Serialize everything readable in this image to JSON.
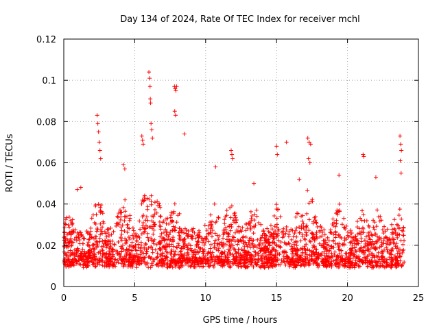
{
  "chart_data": {
    "type": "scatter",
    "title": "Day 134 of 2024, Rate Of TEC Index for receiver mchl",
    "xlabel": "GPS time / hours",
    "ylabel": "ROTI / TECUs",
    "xlim": [
      0,
      25
    ],
    "ylim": [
      0,
      0.12
    ],
    "xticks": [
      0,
      5,
      10,
      15,
      20,
      25
    ],
    "yticks": [
      0,
      0.02,
      0.04,
      0.06,
      0.08,
      0.1,
      0.12
    ],
    "xtick_labels": [
      "0",
      "5",
      "10",
      "15",
      "20",
      "25"
    ],
    "ytick_labels": [
      "0",
      "0.02",
      "0.04",
      "0.06",
      "0.08",
      "0.1",
      "0.12"
    ],
    "grid": true,
    "marker": "+",
    "color": "#ff0000",
    "series": [
      {
        "name": "ROTI",
        "outliers": [
          {
            "x": 2.35,
            "y": 0.083
          },
          {
            "x": 2.4,
            "y": 0.079
          },
          {
            "x": 2.45,
            "y": 0.075
          },
          {
            "x": 2.5,
            "y": 0.07
          },
          {
            "x": 2.55,
            "y": 0.066
          },
          {
            "x": 2.6,
            "y": 0.062
          },
          {
            "x": 5.5,
            "y": 0.073
          },
          {
            "x": 5.55,
            "y": 0.071
          },
          {
            "x": 5.6,
            "y": 0.069
          },
          {
            "x": 6.0,
            "y": 0.104
          },
          {
            "x": 6.05,
            "y": 0.101
          },
          {
            "x": 6.08,
            "y": 0.097
          },
          {
            "x": 6.1,
            "y": 0.091
          },
          {
            "x": 6.12,
            "y": 0.089
          },
          {
            "x": 6.15,
            "y": 0.079
          },
          {
            "x": 6.2,
            "y": 0.076
          },
          {
            "x": 6.25,
            "y": 0.072
          },
          {
            "x": 7.8,
            "y": 0.097
          },
          {
            "x": 7.85,
            "y": 0.096
          },
          {
            "x": 7.9,
            "y": 0.095
          },
          {
            "x": 7.95,
            "y": 0.097
          },
          {
            "x": 7.82,
            "y": 0.085
          },
          {
            "x": 7.88,
            "y": 0.083
          },
          {
            "x": 8.5,
            "y": 0.074
          },
          {
            "x": 11.8,
            "y": 0.066
          },
          {
            "x": 11.85,
            "y": 0.064
          },
          {
            "x": 11.9,
            "y": 0.062
          },
          {
            "x": 15.0,
            "y": 0.068
          },
          {
            "x": 15.05,
            "y": 0.064
          },
          {
            "x": 15.7,
            "y": 0.07
          },
          {
            "x": 17.2,
            "y": 0.072
          },
          {
            "x": 17.3,
            "y": 0.07
          },
          {
            "x": 17.4,
            "y": 0.069
          },
          {
            "x": 17.25,
            "y": 0.062
          },
          {
            "x": 17.35,
            "y": 0.06
          },
          {
            "x": 21.1,
            "y": 0.064
          },
          {
            "x": 21.15,
            "y": 0.063
          },
          {
            "x": 23.7,
            "y": 0.073
          },
          {
            "x": 23.75,
            "y": 0.069
          },
          {
            "x": 23.8,
            "y": 0.066
          },
          {
            "x": 23.72,
            "y": 0.061
          },
          {
            "x": 23.78,
            "y": 0.055
          },
          {
            "x": 4.2,
            "y": 0.059
          },
          {
            "x": 4.3,
            "y": 0.057
          },
          {
            "x": 10.7,
            "y": 0.058
          },
          {
            "x": 19.4,
            "y": 0.054
          },
          {
            "x": 13.4,
            "y": 0.05
          },
          {
            "x": 16.6,
            "y": 0.052
          },
          {
            "x": 22.0,
            "y": 0.053
          },
          {
            "x": 0.95,
            "y": 0.047
          },
          {
            "x": 1.2,
            "y": 0.048
          }
        ]
      }
    ]
  }
}
